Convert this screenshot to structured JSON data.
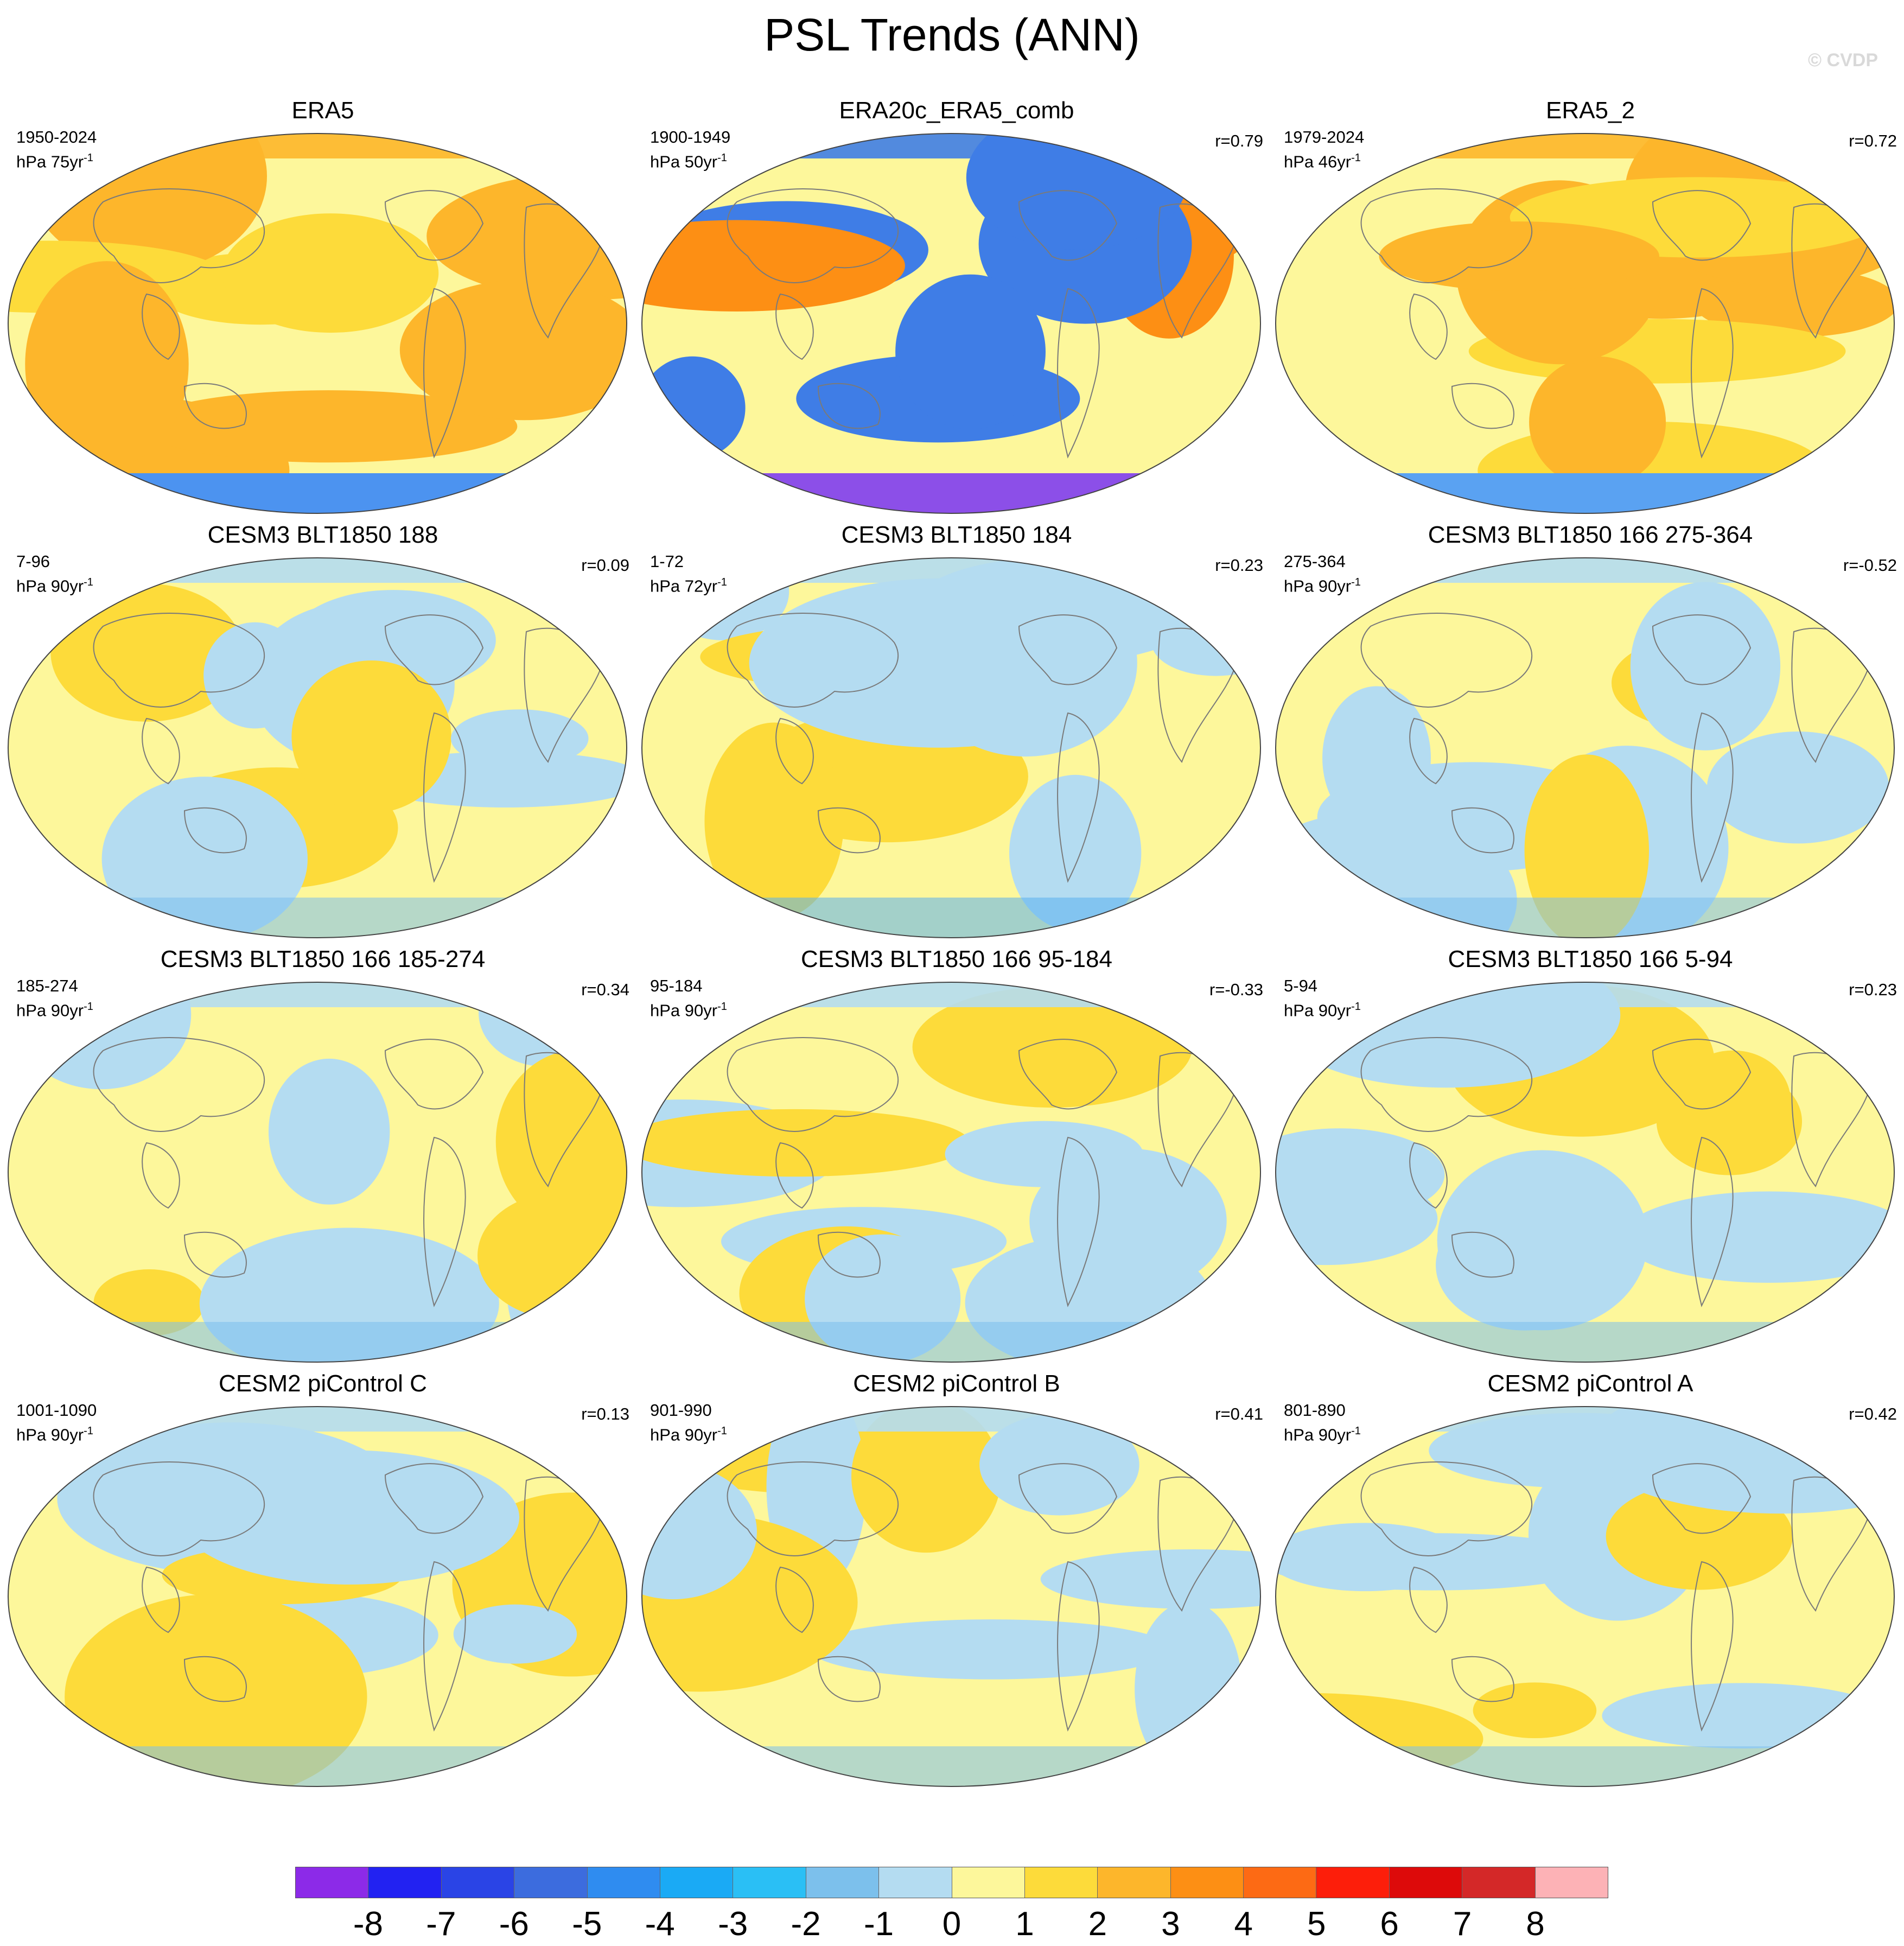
{
  "title": "PSL Trends (ANN)",
  "watermark": "© CVDP",
  "panels": [
    {
      "title": "ERA5",
      "period": "1950-2024",
      "units": "hPa 75yr",
      "r": "",
      "palette": [
        "#fdf79b",
        "#fddb3a",
        "#fdb62b",
        "#4c93f0"
      ]
    },
    {
      "title": "ERA20c_ERA5_comb",
      "period": "1900-1949",
      "units": "hPa 50yr",
      "r": "r=0.79",
      "palette": [
        "#fdf79b",
        "#fd8f14",
        "#3f7de6",
        "#8c4fe8"
      ]
    },
    {
      "title": "ERA5_2",
      "period": "1979-2024",
      "units": "hPa 46yr",
      "r": "r=0.72",
      "palette": [
        "#fdf79b",
        "#fddb3a",
        "#fdb62b",
        "#5aa2f2"
      ]
    },
    {
      "title": "CESM3 BLT1850 188",
      "period": "7-96",
      "units": "hPa 90yr",
      "r": "r=0.09",
      "palette": [
        "#fdf79b",
        "#fddb3a",
        "#b4dcf1",
        "#7cc0ec"
      ]
    },
    {
      "title": "CESM3 BLT1850 184",
      "period": "1-72",
      "units": "hPa 72yr",
      "r": "r=0.23",
      "palette": [
        "#fdf79b",
        "#fddb3a",
        "#b4dcf1",
        "#5ab1ef"
      ]
    },
    {
      "title": "CESM3 BLT1850 166 275-364",
      "period": "275-364",
      "units": "hPa 90yr",
      "r": "r=-0.52",
      "palette": [
        "#fdf79b",
        "#fddb3a",
        "#b4dcf1",
        "#7cc0ec"
      ]
    },
    {
      "title": "CESM3 BLT1850 166 185-274",
      "period": "185-274",
      "units": "hPa 90yr",
      "r": "r=0.34",
      "palette": [
        "#fdf79b",
        "#fddb3a",
        "#b4dcf1",
        "#7cc0ec"
      ]
    },
    {
      "title": "CESM3 BLT1850 166 95-184",
      "period": "95-184",
      "units": "hPa 90yr",
      "r": "r=-0.33",
      "palette": [
        "#fdf79b",
        "#fddb3a",
        "#b4dcf1",
        "#7cc0ec"
      ]
    },
    {
      "title": "CESM3 BLT1850 166 5-94",
      "period": "5-94",
      "units": "hPa 90yr",
      "r": "r=0.23",
      "palette": [
        "#fdf79b",
        "#fddb3a",
        "#b4dcf1",
        "#7cc0ec"
      ]
    },
    {
      "title": "CESM2 piControl C",
      "period": "1001-1090",
      "units": "hPa 90yr",
      "r": "r=0.13",
      "palette": [
        "#fdf79b",
        "#fddb3a",
        "#b4dcf1",
        "#7cc0ec"
      ]
    },
    {
      "title": "CESM2 piControl B",
      "period": "901-990",
      "units": "hPa 90yr",
      "r": "r=0.41",
      "palette": [
        "#fdf79b",
        "#fddb3a",
        "#b4dcf1",
        "#7cc0ec"
      ]
    },
    {
      "title": "CESM2 piControl A",
      "period": "801-890",
      "units": "hPa 90yr",
      "r": "r=0.42",
      "palette": [
        "#fdf79b",
        "#fddb3a",
        "#b4dcf1",
        "#7cc0ec"
      ]
    }
  ],
  "colorbar": {
    "colors": [
      "#8c2ae8",
      "#2222f2",
      "#2a44e6",
      "#3c6cde",
      "#2f8cf0",
      "#1aaaf5",
      "#2abff5",
      "#7cc0ec",
      "#b4dcf1",
      "#fdf79b",
      "#fddb3a",
      "#fdb62b",
      "#fd8f14",
      "#fd6a14",
      "#fd1e0a",
      "#dd0a0a",
      "#d42828",
      "#fdb2b6"
    ],
    "labels": [
      "-8",
      "-7",
      "-6",
      "-5",
      "-4",
      "-3",
      "-2",
      "-1",
      "0",
      "1",
      "2",
      "3",
      "4",
      "5",
      "6",
      "7",
      "8"
    ]
  }
}
